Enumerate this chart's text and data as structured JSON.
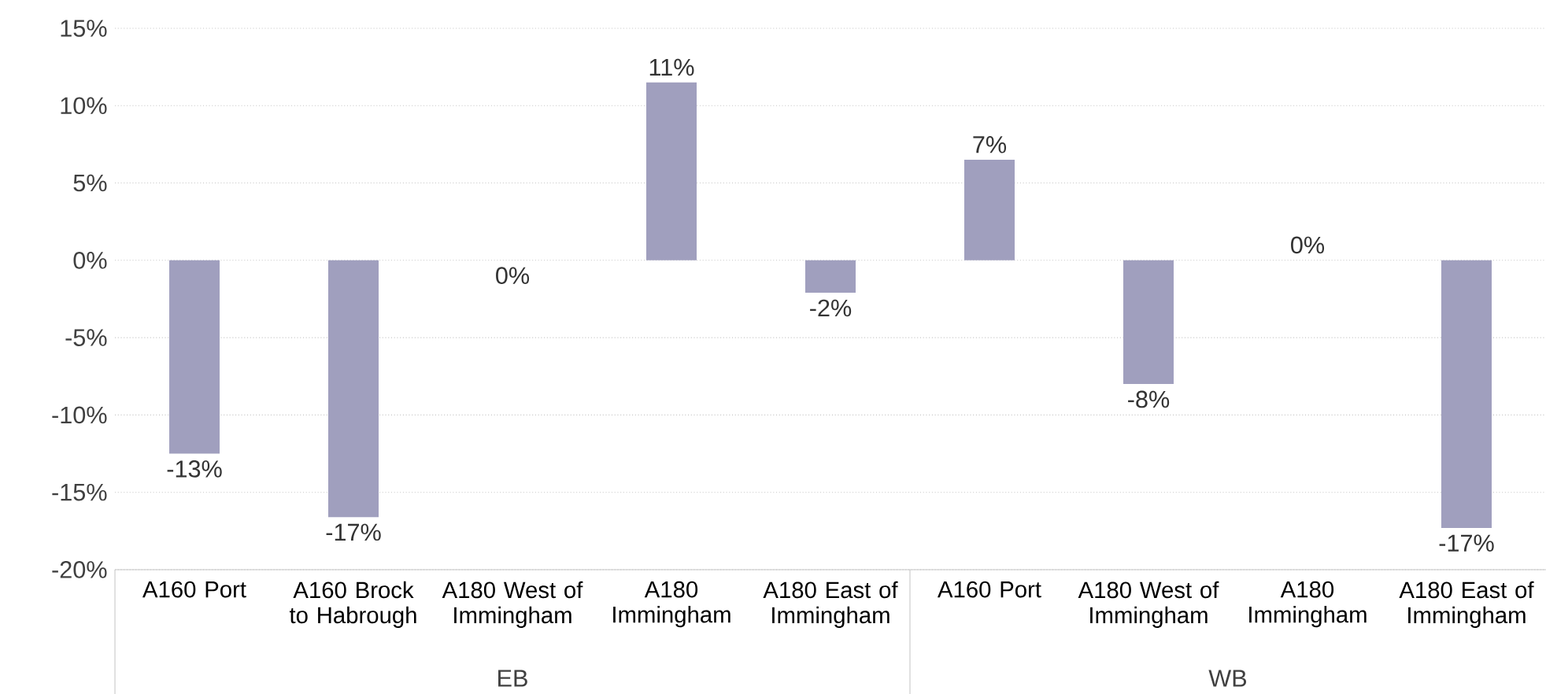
{
  "chart_data": {
    "type": "bar",
    "categories": [
      "A160 Port",
      "A160 Brock to Habrough",
      "A180 West of Immingham",
      "A180 Immingham",
      "A180 East of Immingham",
      "A160 Port",
      "A180 West of Immingham",
      "A180 Immingham",
      "A180 East of Immingham"
    ],
    "values": [
      -12.5,
      -16.6,
      0,
      11.5,
      -2.1,
      6.5,
      -8.0,
      0,
      -17.3
    ],
    "value_labels": [
      "-13%",
      "-17%",
      "0%",
      "11%",
      "-2%",
      "7%",
      "-8%",
      "0%",
      "-17%"
    ],
    "color": "#a09fbe",
    "ylim": [
      -20,
      15
    ],
    "yticks": [
      {
        "value": -20,
        "label": "-20%"
      },
      {
        "value": -15,
        "label": "-15%"
      },
      {
        "value": -10,
        "label": "-10%"
      },
      {
        "value": -5,
        "label": "-5%"
      },
      {
        "value": 0,
        "label": "0%"
      },
      {
        "value": 5,
        "label": "5%"
      },
      {
        "value": 10,
        "label": "10%"
      },
      {
        "value": 15,
        "label": "15%"
      }
    ],
    "grid": "y",
    "annotations": [
      "EB",
      "WB"
    ]
  }
}
